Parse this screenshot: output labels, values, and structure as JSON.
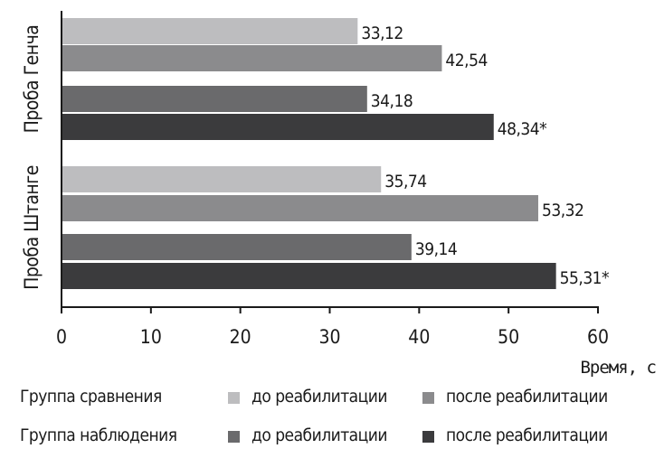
{
  "chart_data": {
    "type": "bar",
    "orientation": "horizontal",
    "xlabel": "Время, с",
    "xlim": [
      0,
      60
    ],
    "xticks": [
      0,
      10,
      20,
      30,
      40,
      50,
      60
    ],
    "categories": [
      "Проба Генча",
      "Проба Штанге"
    ],
    "series": [
      {
        "name": "Группа сравнения — до реабилитации",
        "color": "#bdbdbf",
        "values": [
          33.12,
          35.74
        ],
        "labels": [
          "33,12",
          "35,74"
        ]
      },
      {
        "name": "Группа сравнения — после реабилитации",
        "color": "#8b8b8d",
        "values": [
          42.54,
          53.32
        ],
        "labels": [
          "42,54",
          "53,32"
        ]
      },
      {
        "name": "Группа наблюдения — до реабилитации",
        "color": "#6a6a6c",
        "values": [
          34.18,
          39.14
        ],
        "labels": [
          "34,18",
          "39,14"
        ]
      },
      {
        "name": "Группа наблюдения — после реабилитации",
        "color": "#3b3b3d",
        "values": [
          48.34,
          55.31
        ],
        "labels": [
          "48,34*",
          "55,31*"
        ]
      }
    ]
  },
  "legend": {
    "groups": [
      "Группа сравнения",
      "Группа наблюдения"
    ],
    "before": "до реабилитации",
    "after": "после реабилитации"
  }
}
